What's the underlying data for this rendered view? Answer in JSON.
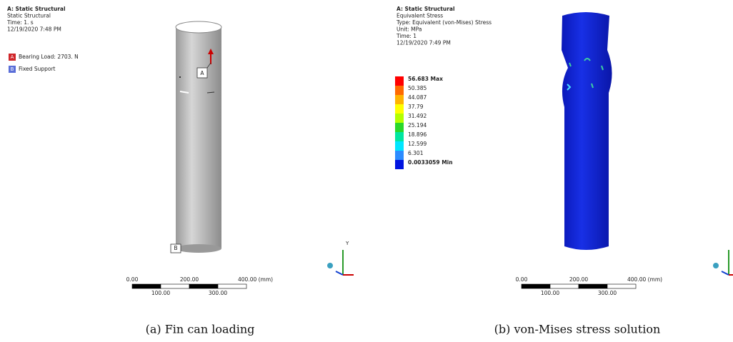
{
  "panels": [
    {
      "header": [
        "A: Static Structural",
        "Static Structural",
        "Time: 1. s",
        "12/19/2020 7:48 PM"
      ],
      "legend": [
        {
          "tag": "A",
          "label": "Bearing Load: 2703. N"
        },
        {
          "tag": "B",
          "label": "Fixed Support"
        }
      ],
      "callouts": [
        "A",
        "B"
      ],
      "scale": {
        "top": [
          "0.00",
          "200.00",
          "400.00 (mm)"
        ],
        "bottom": [
          "100.00",
          "300.00"
        ]
      },
      "axis": "Y",
      "caption": "(a) Fin can loading"
    },
    {
      "header": [
        "A: Static Structural",
        "Equivalent Stress",
        "Type: Equivalent (von-Mises) Stress",
        "Unit: MPa",
        "Time: 1",
        "12/19/2020 7:49 PM"
      ],
      "contour": [
        "56.683 Max",
        "50.385",
        "44.087",
        "37.79",
        "31.492",
        "25.194",
        "18.896",
        "12.599",
        "6.301",
        "0.0033059 Min"
      ],
      "scale": {
        "top": [
          "0.00",
          "200.00",
          "400.00 (mm)"
        ],
        "bottom": [
          "100.00",
          "300.00"
        ]
      },
      "caption": "(b) von-Mises stress solution"
    }
  ]
}
